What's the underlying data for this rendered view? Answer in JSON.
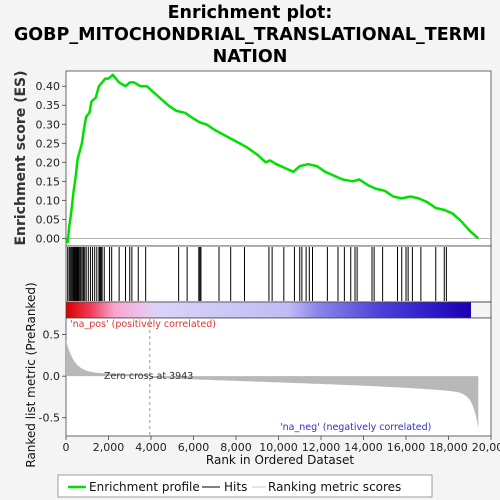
{
  "chart_data": {
    "type": "line",
    "title_lines": [
      "Enrichment plot:",
      "GOBP_MITOCHONDRIAL_TRANSLATIONAL_TERMI",
      "NATION"
    ],
    "es_ylabel": "Enrichment score (ES)",
    "rank_ylabel": "Ranked list metric (PreRanked)",
    "xlabel": "Rank in Ordered Dataset",
    "x_range": [
      0,
      20000
    ],
    "x_ticks": [
      "0",
      "2,000",
      "4,000",
      "6,000",
      "8,000",
      "10,000",
      "12,000",
      "14,000",
      "16,000",
      "18,000",
      "20,000"
    ],
    "es_range": [
      -0.02,
      0.44
    ],
    "es_ticks": [
      "0.00",
      "0.05",
      "0.10",
      "0.15",
      "0.20",
      "0.25",
      "0.30",
      "0.35",
      "0.40"
    ],
    "metric_range": [
      -0.72,
      0.7
    ],
    "metric_ticks": [
      "0.5",
      "0.0",
      "-0.5"
    ],
    "n_genes": 19400,
    "zero_cross_rank": 3943,
    "zero_cross_label": "Zero cross at 3943",
    "pos_label": "'na_pos' (positively correlated)",
    "neg_label": "'na_neg' (negatively correlated)",
    "es_profile": [
      [
        0,
        0.0
      ],
      [
        80,
        -0.01
      ],
      [
        150,
        0.03
      ],
      [
        250,
        0.07
      ],
      [
        350,
        0.12
      ],
      [
        450,
        0.16
      ],
      [
        550,
        0.21
      ],
      [
        650,
        0.23
      ],
      [
        750,
        0.25
      ],
      [
        850,
        0.29
      ],
      [
        950,
        0.32
      ],
      [
        1100,
        0.33
      ],
      [
        1200,
        0.36
      ],
      [
        1400,
        0.37
      ],
      [
        1550,
        0.4
      ],
      [
        1700,
        0.41
      ],
      [
        1850,
        0.42
      ],
      [
        2000,
        0.42
      ],
      [
        2200,
        0.43
      ],
      [
        2500,
        0.41
      ],
      [
        2800,
        0.4
      ],
      [
        3000,
        0.41
      ],
      [
        3200,
        0.41
      ],
      [
        3500,
        0.4
      ],
      [
        3800,
        0.4
      ],
      [
        4200,
        0.38
      ],
      [
        4800,
        0.35
      ],
      [
        5200,
        0.335
      ],
      [
        5600,
        0.33
      ],
      [
        6000,
        0.315
      ],
      [
        6300,
        0.305
      ],
      [
        6600,
        0.3
      ],
      [
        7000,
        0.285
      ],
      [
        7500,
        0.27
      ],
      [
        8000,
        0.255
      ],
      [
        8500,
        0.24
      ],
      [
        9000,
        0.22
      ],
      [
        9400,
        0.2
      ],
      [
        9600,
        0.205
      ],
      [
        9900,
        0.195
      ],
      [
        10300,
        0.185
      ],
      [
        10700,
        0.175
      ],
      [
        11000,
        0.19
      ],
      [
        11400,
        0.195
      ],
      [
        11800,
        0.19
      ],
      [
        12200,
        0.175
      ],
      [
        12600,
        0.165
      ],
      [
        13000,
        0.155
      ],
      [
        13500,
        0.15
      ],
      [
        13800,
        0.155
      ],
      [
        14200,
        0.14
      ],
      [
        14600,
        0.13
      ],
      [
        15000,
        0.125
      ],
      [
        15400,
        0.11
      ],
      [
        15800,
        0.105
      ],
      [
        16200,
        0.11
      ],
      [
        16600,
        0.105
      ],
      [
        17000,
        0.095
      ],
      [
        17400,
        0.08
      ],
      [
        17800,
        0.075
      ],
      [
        18200,
        0.065
      ],
      [
        18600,
        0.045
      ],
      [
        19000,
        0.02
      ],
      [
        19400,
        0.0
      ]
    ],
    "hit_ranks": [
      80,
      150,
      200,
      250,
      300,
      350,
      400,
      450,
      480,
      520,
      560,
      600,
      650,
      700,
      760,
      820,
      880,
      950,
      1050,
      1150,
      1250,
      1350,
      1450,
      1550,
      1600,
      1650,
      1700,
      1800,
      2050,
      2150,
      2500,
      2800,
      3000,
      3100,
      3400,
      3750,
      5300,
      5700,
      6250,
      6300,
      6350,
      7200,
      7750,
      8400,
      9550,
      9700,
      10250,
      10750,
      11000,
      11100,
      11300,
      11450,
      11600,
      12300,
      12800,
      13100,
      13400,
      13600,
      13700,
      14400,
      14500,
      14900,
      15600,
      15800,
      16000,
      16100,
      16300,
      16700,
      17400,
      17800,
      17900
    ],
    "colors": {
      "es_line": "#00e000",
      "hit_line": "#000000",
      "metric_fill": "#b8b8b8",
      "pos_text": "#e03030",
      "neg_text": "#3030c0",
      "zero_line": "#aaaaaa"
    },
    "legend": [
      "Enrichment profile",
      "Hits",
      "Ranking metric scores"
    ]
  }
}
